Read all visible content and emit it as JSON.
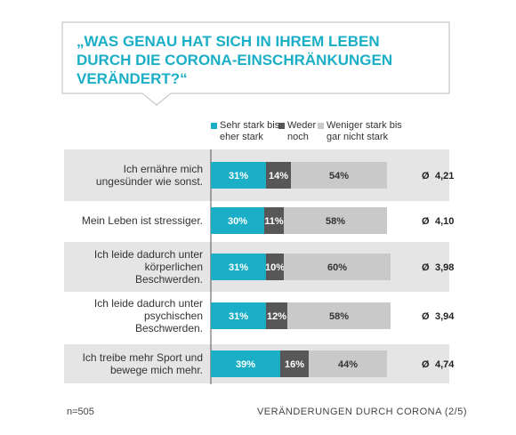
{
  "chart_data": {
    "type": "stacked-bar",
    "title": "„WAS GENAU HAT SICH IN IHREM LEBEN DURCH DIE CORONA-EINSCHRÄNKUNGEN VERÄNDERT?“",
    "categories": [
      "Ich ernähre mich ungesünder wie sonst.",
      "Mein Leben ist stressiger.",
      "Ich leide dadurch unter körperlichen Beschwerden.",
      "Ich leide dadurch unter psychischen Beschwerden.",
      "Ich treibe mehr Sport und bewege mich mehr."
    ],
    "series": [
      {
        "name": "Sehr stark bis eher stark",
        "color": "#1aafc6",
        "values": [
          31,
          30,
          31,
          31,
          39
        ],
        "value_labels": [
          "31%",
          "30%",
          "31%",
          "31%",
          "39%"
        ]
      },
      {
        "name": "Weder noch",
        "color": "#575757",
        "values": [
          14,
          11,
          10,
          12,
          16
        ],
        "value_labels": [
          "14%",
          "11%",
          "10%",
          "12%",
          "16%"
        ]
      },
      {
        "name": "Weniger stark bis gar nicht stark",
        "color": "#c9c9c9",
        "values": [
          54,
          58,
          60,
          58,
          44
        ],
        "value_labels": [
          "54%",
          "58%",
          "60%",
          "58%",
          "44%"
        ]
      }
    ],
    "xlim": [
      0,
      100
    ],
    "average_symbol": "Ø",
    "averages": [
      "4,21",
      "4,10",
      "3,98",
      "3,94",
      "4,74"
    ],
    "sample_note": "n=505",
    "footer": "VERÄNDERUNGEN DURCH CORONA (2/5)"
  }
}
